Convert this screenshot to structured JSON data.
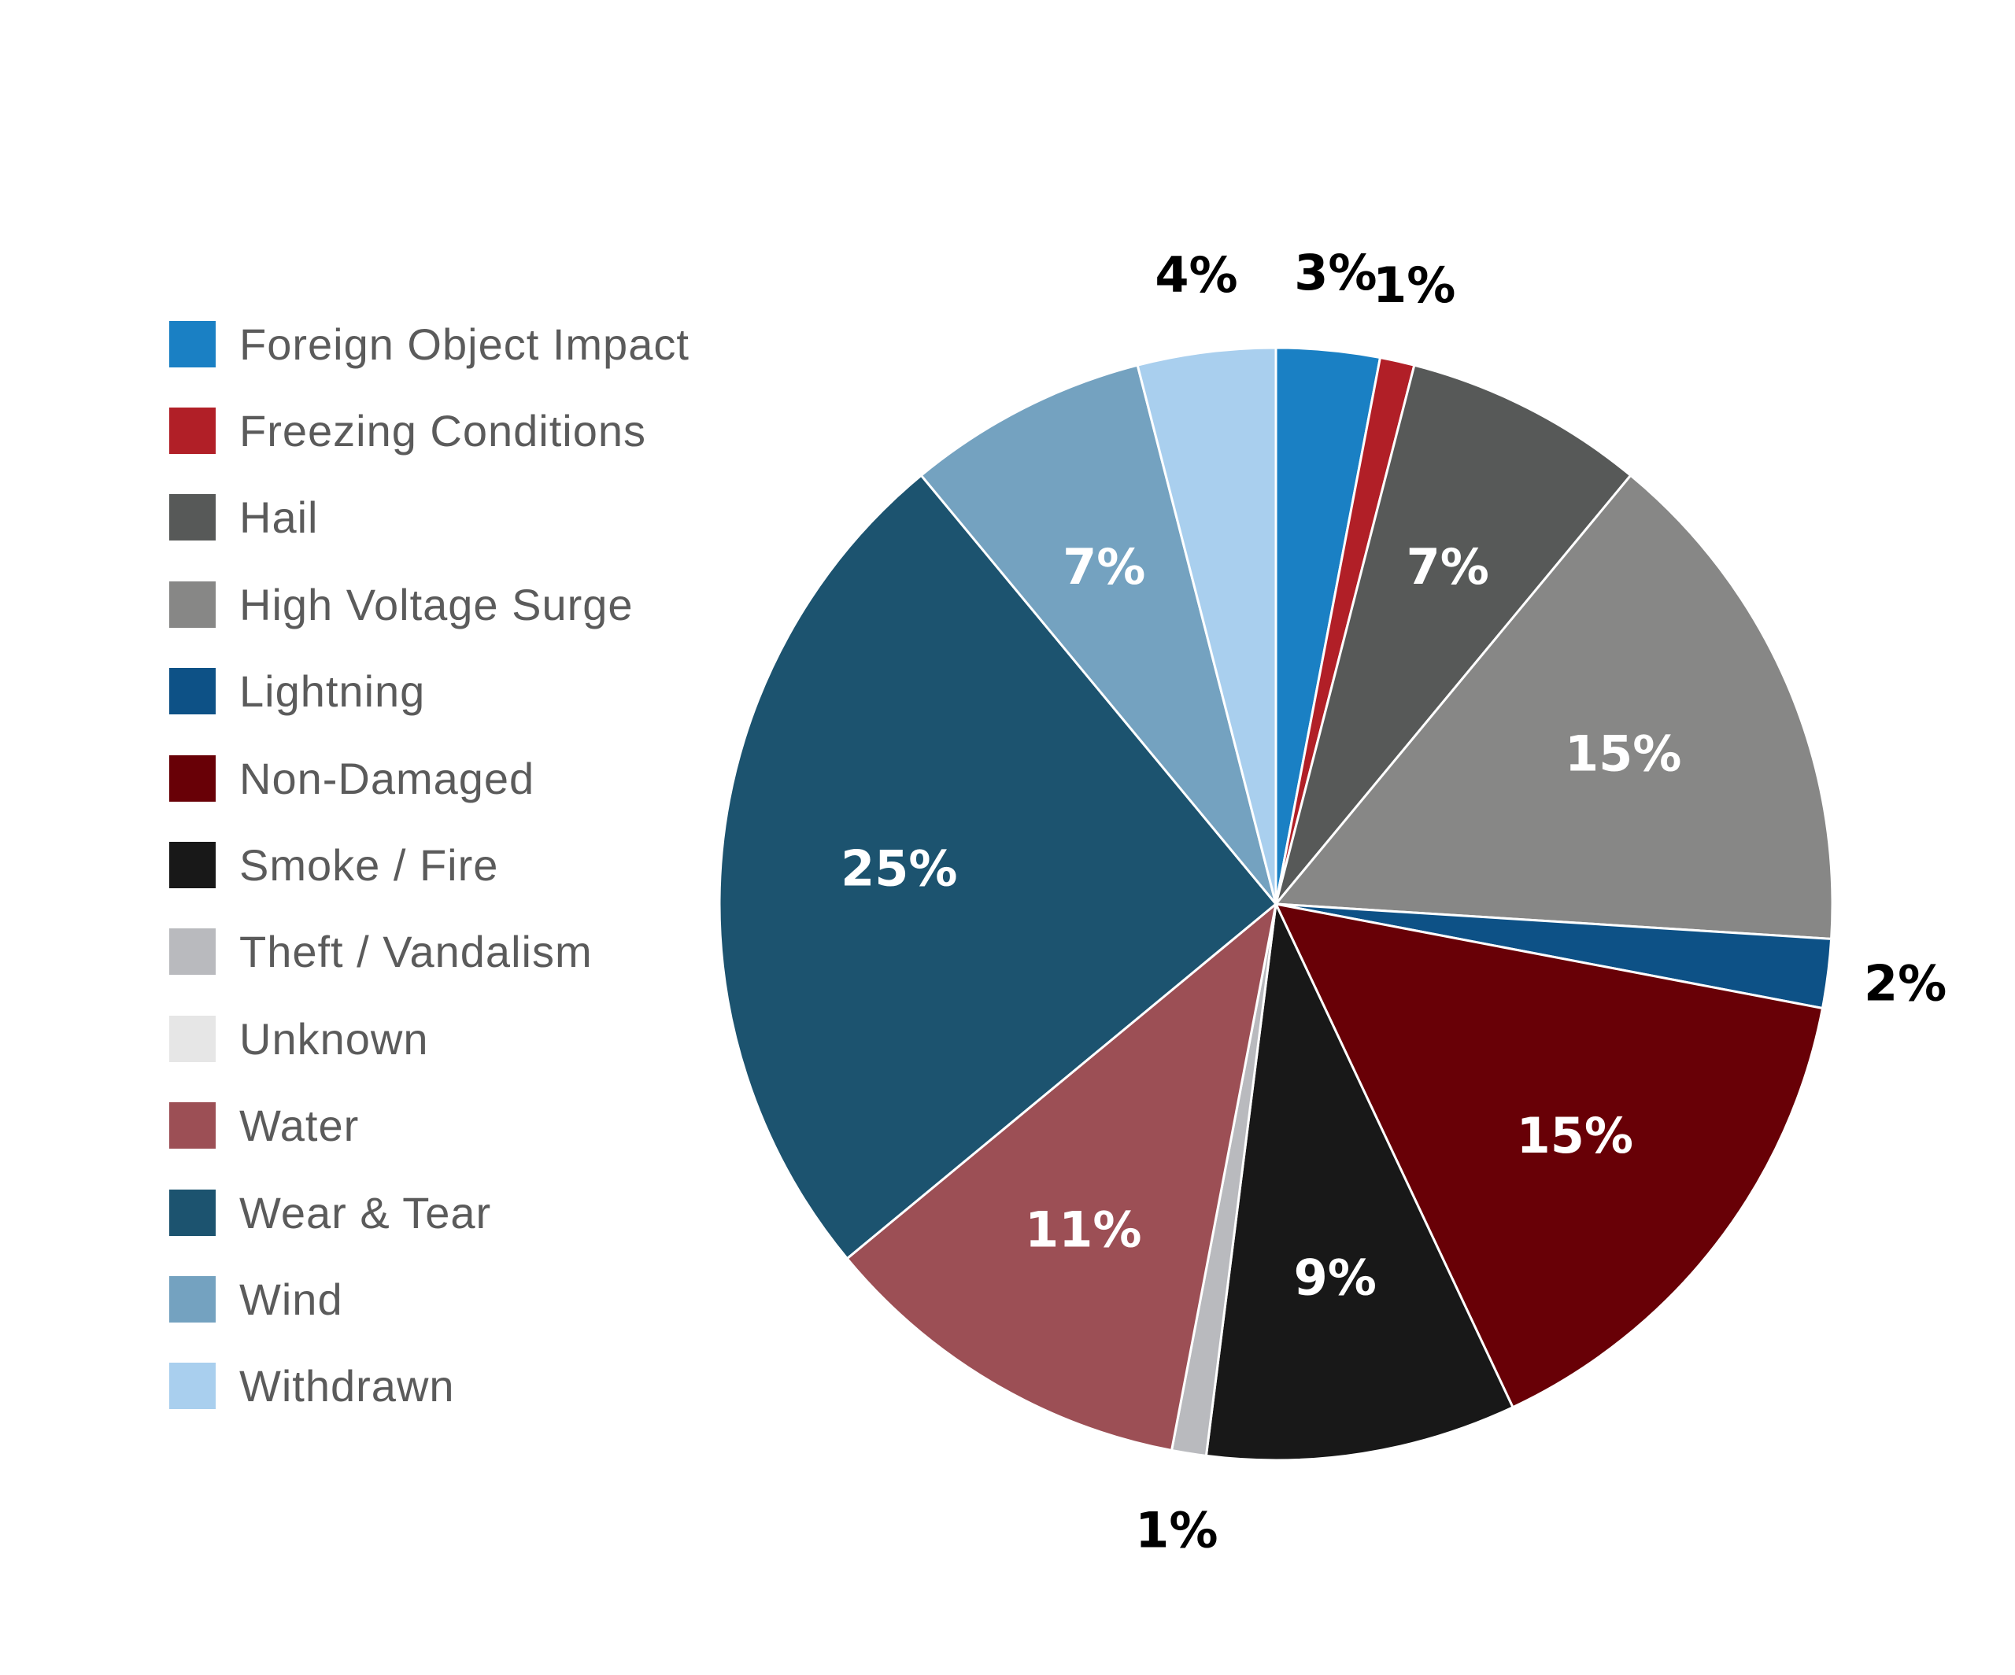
{
  "chart_data": {
    "type": "pie",
    "title": "",
    "legend_position": "left",
    "start_angle_deg": 0,
    "direction": "clockwise",
    "slices": [
      {
        "label": "Foreign Object Impact",
        "value": 3,
        "display": "3%",
        "color": "#1a80c4"
      },
      {
        "label": "Freezing Conditions",
        "value": 1,
        "display": "1%",
        "color": "#b11f27"
      },
      {
        "label": "Hail",
        "value": 7,
        "display": "7%",
        "color": "#575958"
      },
      {
        "label": "High Voltage Surge",
        "value": 15,
        "display": "15%",
        "color": "#878786"
      },
      {
        "label": "Lightning",
        "value": 2,
        "display": "2%",
        "color": "#0d5186"
      },
      {
        "label": "Non-Damaged",
        "value": 15,
        "display": "15%",
        "color": "#680006"
      },
      {
        "label": "Smoke / Fire",
        "value": 9,
        "display": "9%",
        "color": "#181818"
      },
      {
        "label": "Theft / Vandalism",
        "value": 1,
        "display": "1%",
        "color": "#b9babe"
      },
      {
        "label": "Unknown",
        "value": 0,
        "display": "",
        "color": "#e6e6e6"
      },
      {
        "label": "Water",
        "value": 11,
        "display": "11%",
        "color": "#9c4f55"
      },
      {
        "label": "Wear & Tear",
        "value": 25,
        "display": "25%",
        "color": "#1c536f"
      },
      {
        "label": "Wind",
        "value": 7,
        "display": "7%",
        "color": "#74a2c0"
      },
      {
        "label": "Withdrawn",
        "value": 4,
        "display": "4%",
        "color": "#a9cfee"
      }
    ]
  }
}
